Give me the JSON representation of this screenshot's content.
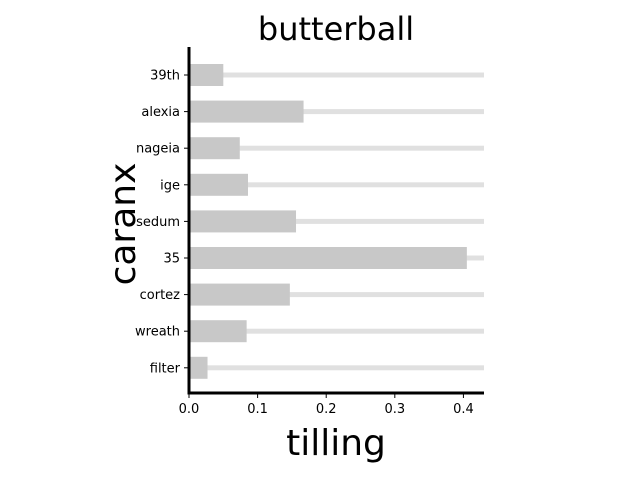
{
  "chart_data": {
    "type": "bar",
    "orientation": "horizontal",
    "title": "butterball",
    "xlabel": "tilling",
    "ylabel": "caranx",
    "categories": [
      "39th",
      "alexia",
      "nageia",
      "ige",
      "sedum",
      "35",
      "cortez",
      "wreath",
      "filter"
    ],
    "values": [
      0.05,
      0.167,
      0.074,
      0.086,
      0.156,
      0.405,
      0.147,
      0.084,
      0.027
    ],
    "xlim": [
      0,
      0.43
    ],
    "xticks": [
      0.0,
      0.1,
      0.2,
      0.3,
      0.4
    ],
    "xtick_labels": [
      "0.0",
      "0.1",
      "0.2",
      "0.3",
      "0.4"
    ],
    "grid": false,
    "colors": {
      "bar": "#c8c8c8",
      "track": "#e0e0e0",
      "axis": "#000000"
    }
  }
}
